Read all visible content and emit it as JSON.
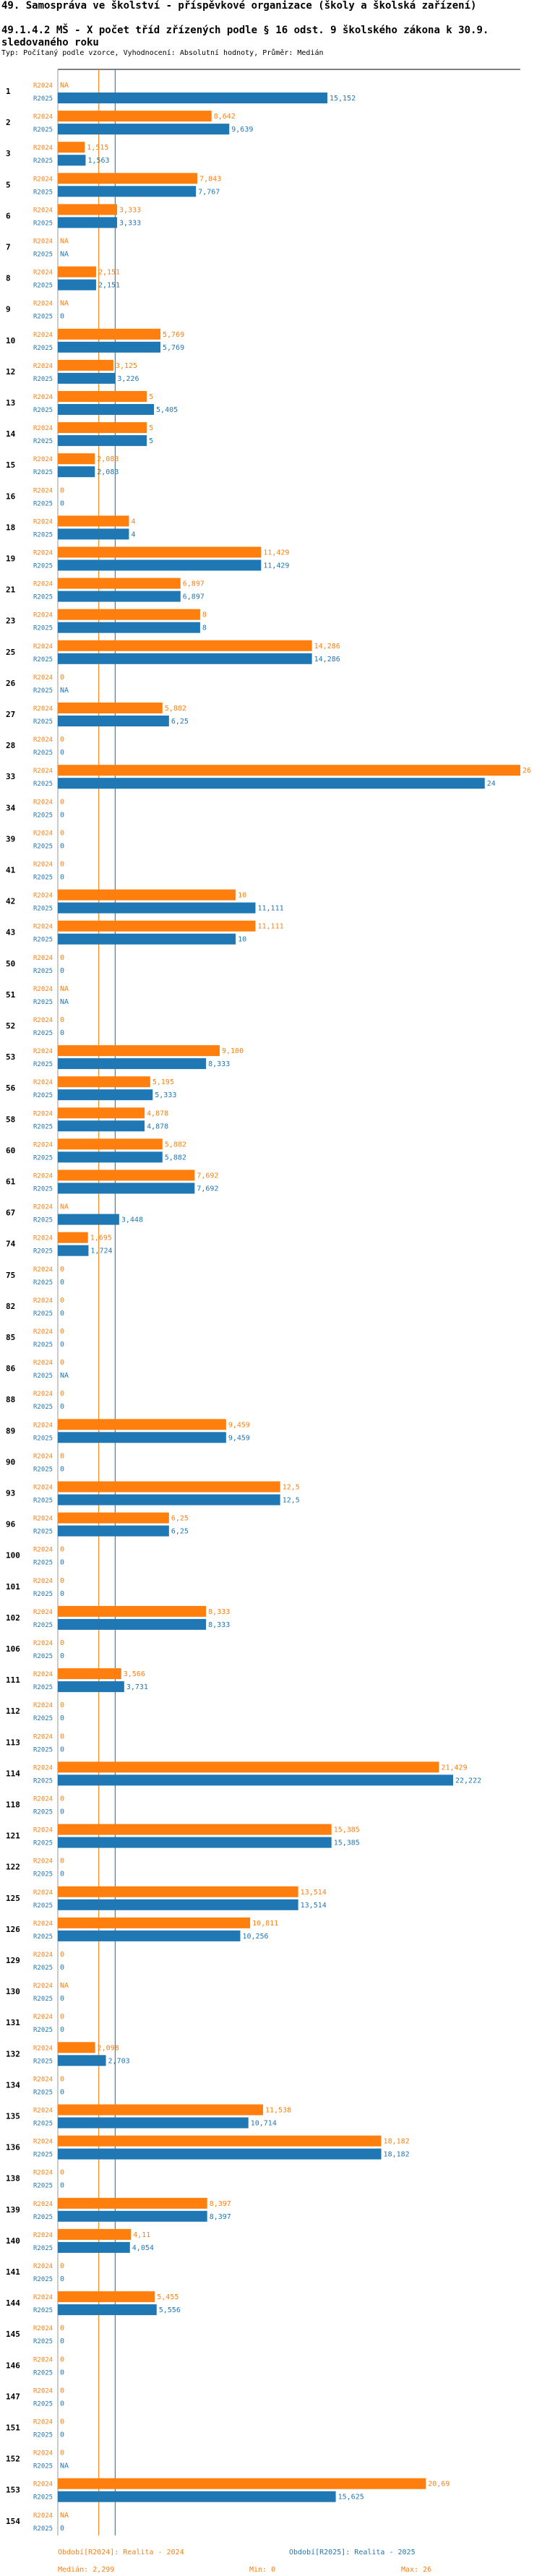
{
  "header": {
    "title_line1": "49. Samospráva ve školství - příspěvkové organizace (školy a školská zařízení)",
    "title_line2": "49.1.4.2 MŠ - X počet tříd zřízených podle § 16 odst. 9 školského zákona k 30.9.",
    "title_line3": "sledovaného roku",
    "chart_type": "Typ: Počítaný podle vzorce, Vyhodnocení: Absolutní hodnoty, Průměr: Medián"
  },
  "colors": {
    "series_2024": "#ff7f0e",
    "series_2025": "#1f77b4",
    "axis": "#000000"
  },
  "chart_data": {
    "type": "bar",
    "orientation": "horizontal",
    "xlim": [
      0,
      26
    ],
    "categories": [
      "1",
      "2",
      "3",
      "5",
      "6",
      "7",
      "8",
      "9",
      "10",
      "12",
      "13",
      "14",
      "15",
      "16",
      "18",
      "19",
      "21",
      "23",
      "25",
      "26",
      "27",
      "28",
      "33",
      "34",
      "39",
      "41",
      "42",
      "43",
      "50",
      "51",
      "52",
      "53",
      "56",
      "58",
      "60",
      "61",
      "67",
      "74",
      "75",
      "82",
      "85",
      "86",
      "88",
      "89",
      "90",
      "93",
      "96",
      "100",
      "101",
      "102",
      "106",
      "111",
      "112",
      "113",
      "114",
      "118",
      "121",
      "122",
      "125",
      "126",
      "129",
      "130",
      "131",
      "132",
      "134",
      "135",
      "136",
      "138",
      "139",
      "140",
      "141",
      "144",
      "145",
      "146",
      "147",
      "151",
      "152",
      "153",
      "154"
    ],
    "series": [
      {
        "name": "R2024",
        "values": [
          null,
          8.642,
          1.515,
          7.843,
          3.333,
          null,
          2.151,
          null,
          5.769,
          3.125,
          5,
          5,
          2.083,
          0,
          4,
          11.429,
          6.897,
          8,
          14.286,
          0,
          5.882,
          0,
          26,
          0,
          0,
          0,
          10,
          11.111,
          0,
          null,
          0,
          9.1,
          5.195,
          4.878,
          5.882,
          7.692,
          null,
          1.695,
          0,
          0,
          0,
          0,
          0,
          9.459,
          0,
          12.5,
          6.25,
          0,
          0,
          8.333,
          0,
          3.566,
          0,
          0,
          21.429,
          0,
          15.385,
          0,
          13.514,
          10.811,
          0,
          null,
          0,
          2.098,
          0,
          11.538,
          18.182,
          0,
          8.397,
          4.11,
          0,
          5.455,
          0,
          0,
          0,
          0,
          0,
          20.69,
          null
        ],
        "labels": [
          "NA",
          "8,642",
          "1,515",
          "7,843",
          "3,333",
          "NA",
          "2,151",
          "NA",
          "5,769",
          "3,125",
          "5",
          "5",
          "2,083",
          "0",
          "4",
          "11,429",
          "6,897",
          "8",
          "14,286",
          "0",
          "5,882",
          "0",
          "26",
          "0",
          "0",
          "0",
          "10",
          "11,111",
          "0",
          "NA",
          "0",
          "9,100",
          "5,195",
          "4,878",
          "5,882",
          "7,692",
          "NA",
          "1,695",
          "0",
          "0",
          "0",
          "0",
          "0",
          "9,459",
          "0",
          "12,5",
          "6,25",
          "0",
          "0",
          "8,333",
          "0",
          "3,566",
          "0",
          "0",
          "21,429",
          "0",
          "15,385",
          "0",
          "13,514",
          "10,811",
          "0",
          "NA",
          "0",
          "2,098",
          "0",
          "11,538",
          "18,182",
          "0",
          "8,397",
          "4,11",
          "0",
          "5,455",
          "0",
          "0",
          "0",
          "0",
          "0",
          "20,69",
          "NA"
        ]
      },
      {
        "name": "R2025",
        "values": [
          15.152,
          9.639,
          1.563,
          7.767,
          3.333,
          null,
          2.151,
          0,
          5.769,
          3.226,
          5.405,
          5,
          2.083,
          0,
          4,
          11.429,
          6.897,
          8,
          14.286,
          null,
          6.25,
          0,
          24,
          0,
          0,
          0,
          11.111,
          10,
          0,
          null,
          0,
          8.333,
          5.333,
          4.878,
          5.882,
          7.692,
          3.448,
          1.724,
          0,
          0,
          0,
          null,
          0,
          9.459,
          0,
          12.5,
          6.25,
          0,
          0,
          8.333,
          0,
          3.731,
          0,
          0,
          22.222,
          0,
          15.385,
          0,
          13.514,
          10.256,
          0,
          0,
          0,
          2.703,
          0,
          10.714,
          18.182,
          0,
          8.397,
          4.054,
          0,
          5.556,
          0,
          0,
          0,
          0,
          null,
          15.625,
          0
        ],
        "labels": [
          "15,152",
          "9,639",
          "1,563",
          "7,767",
          "3,333",
          "NA",
          "2,151",
          "0",
          "5,769",
          "3,226",
          "5,405",
          "5",
          "2,083",
          "0",
          "4",
          "11,429",
          "6,897",
          "8",
          "14,286",
          "NA",
          "6,25",
          "0",
          "24",
          "0",
          "0",
          "0",
          "11,111",
          "10",
          "0",
          "NA",
          "0",
          "8,333",
          "5,333",
          "4,878",
          "5,882",
          "7,692",
          "3,448",
          "1,724",
          "0",
          "0",
          "0",
          "NA",
          "0",
          "9,459",
          "0",
          "12,5",
          "6,25",
          "0",
          "0",
          "8,333",
          "0",
          "3,731",
          "0",
          "0",
          "22,222",
          "0",
          "15,385",
          "0",
          "13,514",
          "10,256",
          "0",
          "0",
          "0",
          "2,703",
          "0",
          "10,714",
          "18,182",
          "0",
          "8,397",
          "4,054",
          "0",
          "5,556",
          "0",
          "0",
          "0",
          "0",
          "NA",
          "15,625",
          "0"
        ]
      }
    ],
    "reference_lines": [
      {
        "name": "Medián R2024",
        "value": 2.299
      },
      {
        "name": "Medián R2025",
        "value": 3.226
      }
    ],
    "legend": {
      "r2024": {
        "name": "Období[R2024]: Realita - 2024",
        "median": "Medián: 2,299",
        "min": "Min: 0",
        "max": "Max: 26"
      },
      "r2025": {
        "name": "Období[R2025]: Realita - 2025",
        "median": "Medián: 3,226",
        "min": "Min: 0",
        "max": "Max: 24"
      }
    }
  }
}
